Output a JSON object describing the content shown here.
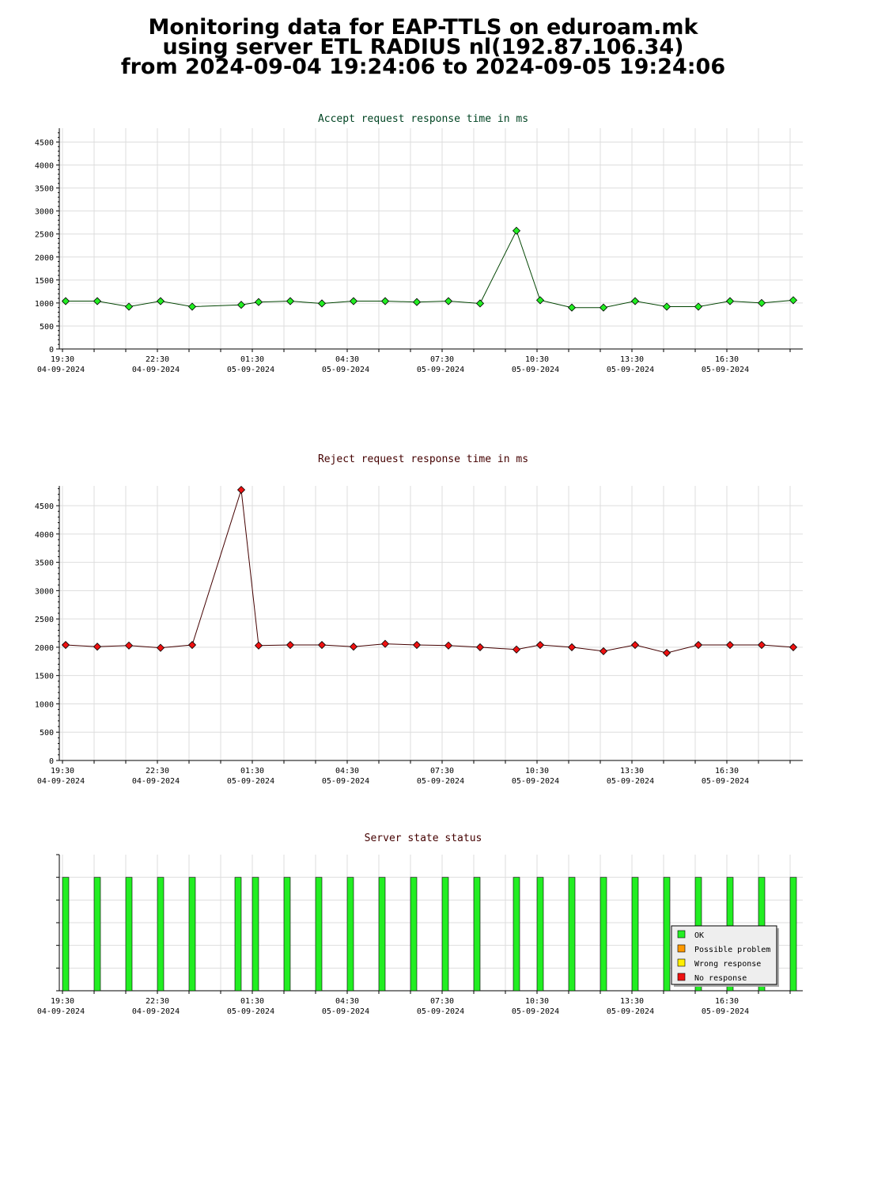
{
  "header": {
    "line1": "Monitoring data for EAP-TTLS on eduroam.mk",
    "line2": "using server ETL RADIUS nl(192.87.106.34)",
    "line3": "from 2024-09-04 19:24:06 to 2024-09-05 19:24:06"
  },
  "colors": {
    "accept_line": "#004400",
    "accept_marker": "#22ee22",
    "reject_line": "#440000",
    "reject_marker": "#ee1111",
    "ok": "#22ee22",
    "possible_problem": "#ff9900",
    "wrong_response": "#ffee00",
    "no_response": "#ee1111"
  },
  "chart_data": [
    {
      "type": "line",
      "title": "Accept request response time in ms",
      "ylim": [
        0,
        4800
      ],
      "yticks": [
        0,
        500,
        1000,
        1500,
        2000,
        2500,
        3000,
        3500,
        4000,
        4500
      ],
      "xlim": [
        19.4,
        42.9
      ],
      "xtick_labels": [
        {
          "x": 19.5,
          "time": "19:30",
          "date": "04-09-2024"
        },
        {
          "x": 22.5,
          "time": "22:30",
          "date": "04-09-2024"
        },
        {
          "x": 25.5,
          "time": "01:30",
          "date": "05-09-2024"
        },
        {
          "x": 28.5,
          "time": "04:30",
          "date": "05-09-2024"
        },
        {
          "x": 31.5,
          "time": "07:30",
          "date": "05-09-2024"
        },
        {
          "x": 34.5,
          "time": "10:30",
          "date": "05-09-2024"
        },
        {
          "x": 37.5,
          "time": "13:30",
          "date": "05-09-2024"
        },
        {
          "x": 40.5,
          "time": "16:30",
          "date": "05-09-2024"
        }
      ],
      "grid": true,
      "series": [
        {
          "x": [
            19.6,
            20.6,
            21.6,
            22.6,
            23.6,
            25.15,
            25.7,
            26.7,
            27.7,
            28.7,
            29.7,
            30.7,
            31.7,
            32.7,
            33.85,
            34.6,
            35.6,
            36.6,
            37.6,
            38.6,
            39.6,
            40.6,
            41.6,
            42.6
          ],
          "values": [
            1040,
            1040,
            920,
            1040,
            920,
            960,
            1020,
            1040,
            990,
            1040,
            1040,
            1020,
            1040,
            990,
            2570,
            1060,
            900,
            900,
            1040,
            920,
            920,
            1040,
            1000,
            1060
          ]
        }
      ]
    },
    {
      "type": "line",
      "title": "Reject request response time in ms",
      "ylim": [
        0,
        4850
      ],
      "yticks": [
        0,
        500,
        1000,
        1500,
        2000,
        2500,
        3000,
        3500,
        4000,
        4500
      ],
      "xlim": [
        19.4,
        42.9
      ],
      "xtick_labels": [
        {
          "x": 19.5,
          "time": "19:30",
          "date": "04-09-2024"
        },
        {
          "x": 22.5,
          "time": "22:30",
          "date": "04-09-2024"
        },
        {
          "x": 25.5,
          "time": "01:30",
          "date": "05-09-2024"
        },
        {
          "x": 28.5,
          "time": "04:30",
          "date": "05-09-2024"
        },
        {
          "x": 31.5,
          "time": "07:30",
          "date": "05-09-2024"
        },
        {
          "x": 34.5,
          "time": "10:30",
          "date": "05-09-2024"
        },
        {
          "x": 37.5,
          "time": "13:30",
          "date": "05-09-2024"
        },
        {
          "x": 40.5,
          "time": "16:30",
          "date": "05-09-2024"
        }
      ],
      "grid": true,
      "series": [
        {
          "x": [
            19.6,
            20.6,
            21.6,
            22.6,
            23.6,
            25.15,
            25.7,
            26.7,
            27.7,
            28.7,
            29.7,
            30.7,
            31.7,
            32.7,
            33.85,
            34.6,
            35.6,
            36.6,
            37.6,
            38.6,
            39.6,
            40.6,
            41.6,
            42.6
          ],
          "values": [
            2040,
            2010,
            2030,
            1990,
            2040,
            4780,
            2030,
            2040,
            2040,
            2010,
            2060,
            2040,
            2030,
            2000,
            1960,
            2040,
            2000,
            1930,
            2040,
            1900,
            2040,
            2040,
            2040,
            2000
          ]
        }
      ]
    },
    {
      "type": "bar",
      "title": "Server state status",
      "xlim": [
        19.4,
        42.9
      ],
      "xtick_labels": [
        {
          "x": 19.5,
          "time": "19:30",
          "date": "04-09-2024"
        },
        {
          "x": 22.5,
          "time": "22:30",
          "date": "04-09-2024"
        },
        {
          "x": 25.5,
          "time": "01:30",
          "date": "05-09-2024"
        },
        {
          "x": 28.5,
          "time": "04:30",
          "date": "05-09-2024"
        },
        {
          "x": 31.5,
          "time": "07:30",
          "date": "05-09-2024"
        },
        {
          "x": 34.5,
          "time": "10:30",
          "date": "05-09-2024"
        },
        {
          "x": 37.5,
          "time": "13:30",
          "date": "05-09-2024"
        },
        {
          "x": 40.5,
          "time": "16:30",
          "date": "05-09-2024"
        }
      ],
      "x": [
        19.6,
        20.6,
        21.6,
        22.6,
        23.6,
        25.05,
        25.6,
        26.6,
        27.6,
        28.6,
        29.6,
        30.6,
        31.6,
        32.6,
        33.85,
        34.6,
        35.6,
        36.6,
        37.6,
        38.6,
        39.6,
        40.6,
        41.6,
        42.6
      ],
      "status": [
        "OK",
        "OK",
        "OK",
        "OK",
        "OK",
        "OK",
        "OK",
        "OK",
        "OK",
        "OK",
        "OK",
        "OK",
        "OK",
        "OK",
        "OK",
        "OK",
        "OK",
        "OK",
        "OK",
        "OK",
        "OK",
        "OK",
        "OK",
        "OK"
      ],
      "legend": {
        "placement": "bottom-right",
        "items": [
          {
            "label": "OK",
            "color_key": "ok"
          },
          {
            "label": "Possible problem",
            "color_key": "possible_problem"
          },
          {
            "label": "Wrong response",
            "color_key": "wrong_response"
          },
          {
            "label": "No response",
            "color_key": "no_response"
          }
        ]
      },
      "grid": true
    }
  ]
}
